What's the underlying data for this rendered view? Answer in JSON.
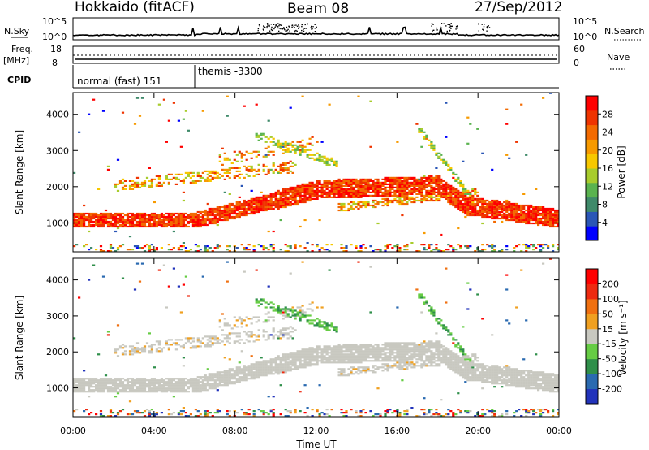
{
  "header": {
    "title": "Hokkaido (fitACF)",
    "beam": "Beam 08",
    "date": "27/Sep/2012"
  },
  "top_panel": {
    "left_label_1": "N.Sky",
    "left_ticks": [
      "10^5",
      "10^0"
    ],
    "right_ticks": [
      "10^5",
      "10^0"
    ],
    "right_label": "N.Search",
    "freq_label_1": "Freq.",
    "freq_label_2": "[MHz]",
    "freq_ticks": [
      "18",
      "8"
    ],
    "nave_ticks": [
      "60",
      "0"
    ],
    "nave_label": "Nave",
    "cpid_label": "CPID",
    "cpid_1": "normal (fast) 151",
    "cpid_2": "themis -3300"
  },
  "chart_data": [
    {
      "type": "heatmap",
      "title": "",
      "ylabel": "Slant Range [km]",
      "xlabel": "",
      "yticks": [
        "1000",
        "2000",
        "3000",
        "4000"
      ],
      "ylim": [
        200,
        4600
      ],
      "colorbar_label": "Power [dB]",
      "colorbar_ticks": [
        "28",
        "24",
        "20",
        "16",
        "12",
        "8",
        "4"
      ],
      "colorbar_colors": [
        "#0000ff",
        "#2a56b6",
        "#3f8a6a",
        "#5ab34f",
        "#a8cc2c",
        "#f7c800",
        "#f79a00",
        "#f36a00",
        "#ef3400",
        "#ff0000"
      ]
    },
    {
      "type": "heatmap",
      "title": "",
      "ylabel": "Slant Range [km]",
      "xlabel": "Time UT",
      "yticks": [
        "1000",
        "2000",
        "3000",
        "4000"
      ],
      "ylim": [
        200,
        4600
      ],
      "xticks": [
        "00:00",
        "04:00",
        "08:00",
        "12:00",
        "16:00",
        "20:00",
        "00:00"
      ],
      "colorbar_label": "Velocity [m s⁻¹]",
      "colorbar_ticks": [
        "200",
        "100",
        "50",
        "15",
        "-15",
        "-50",
        "-100",
        "-200"
      ],
      "colorbar_colors": [
        "#2233bb",
        "#2a6ab0",
        "#2f8f4a",
        "#66cc44",
        "#c8c8c0",
        "#f0a020",
        "#f07010",
        "#ee2a10",
        "#ff0000"
      ]
    }
  ]
}
